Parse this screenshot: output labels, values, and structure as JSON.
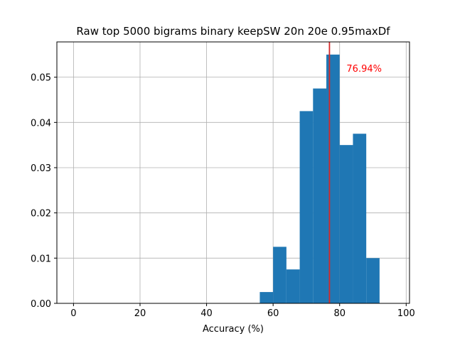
{
  "chart_data": {
    "type": "bar",
    "title": "Raw top 5000 bigrams binary keepSW 20n 20e 0.95maxDf",
    "xlabel": "Accuracy (%)",
    "ylabel": "",
    "xlim": [
      -5,
      101
    ],
    "ylim": [
      0,
      0.0578
    ],
    "xticks": [
      0,
      20,
      40,
      60,
      80,
      100
    ],
    "yticks": [
      0.0,
      0.01,
      0.02,
      0.03,
      0.04,
      0.05
    ],
    "ytick_labels": [
      "0.00",
      "0.01",
      "0.02",
      "0.03",
      "0.04",
      "0.05"
    ],
    "grid": true,
    "bar_color": "#1f77b4",
    "bins": [
      {
        "start": 56,
        "end": 60,
        "value": 0.0025
      },
      {
        "start": 60,
        "end": 64,
        "value": 0.0125
      },
      {
        "start": 64,
        "end": 68,
        "value": 0.0075
      },
      {
        "start": 68,
        "end": 72,
        "value": 0.0425
      },
      {
        "start": 72,
        "end": 76,
        "value": 0.0475
      },
      {
        "start": 76,
        "end": 80,
        "value": 0.055
      },
      {
        "start": 80,
        "end": 84,
        "value": 0.035
      },
      {
        "start": 84,
        "end": 88,
        "value": 0.0375
      },
      {
        "start": 88,
        "end": 92,
        "value": 0.01
      }
    ],
    "mean_line": {
      "x": 76.94,
      "label": "76.94%",
      "color": "#d62728",
      "label_color": "#ff0000"
    }
  }
}
